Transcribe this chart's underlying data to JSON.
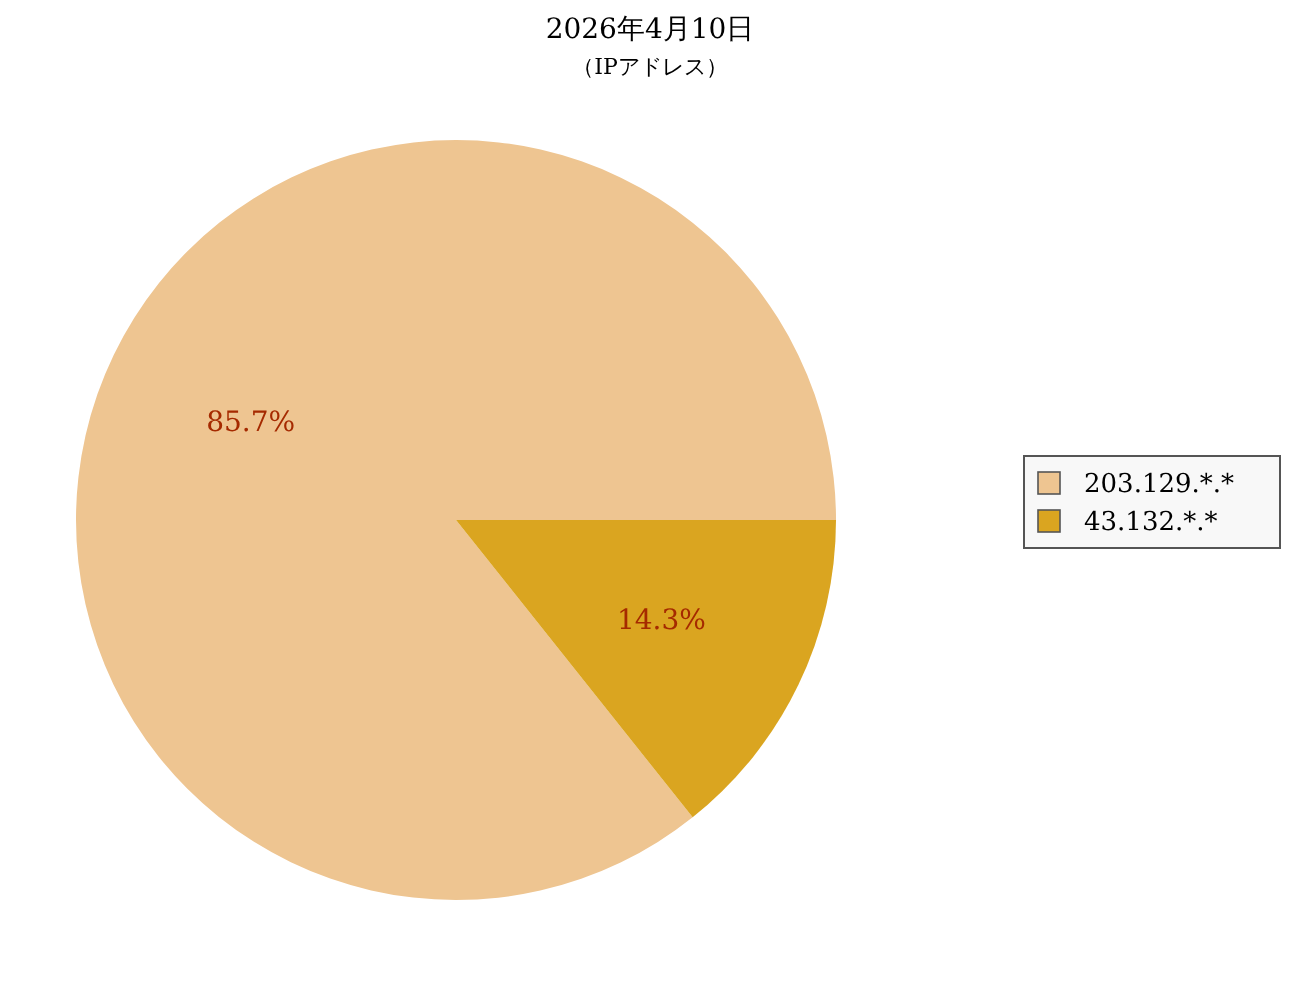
{
  "chart_data": {
    "type": "pie",
    "title": "2026年4月10日",
    "subtitle": "（IPアドレス）",
    "categories": [
      "203.129.*.*",
      "43.132.*.*"
    ],
    "values": [
      85.7,
      14.3
    ],
    "colors": [
      "#eec591",
      "#daa520"
    ],
    "value_labels": [
      "85.7%",
      "14.3%"
    ],
    "legend": "right"
  }
}
